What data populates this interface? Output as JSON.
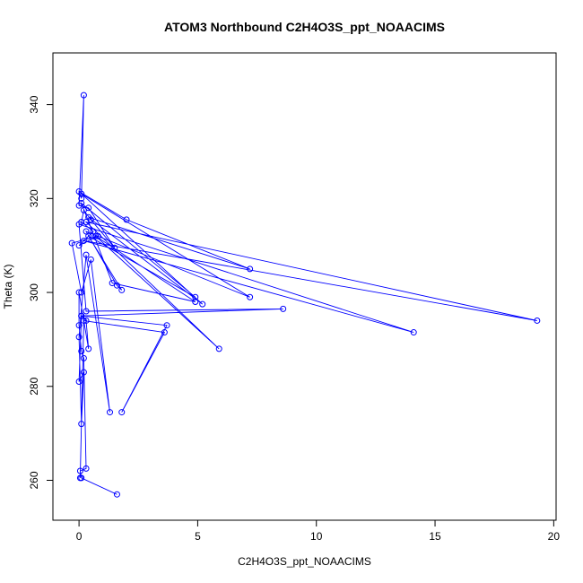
{
  "chart_data": {
    "type": "line",
    "title": "ATOM3 Northbound C2H4O3S_ppt_NOAACIMS",
    "xlabel": "C2H4O3S_ppt_NOAACIMS",
    "ylabel": "Theta (K)",
    "xlim": [
      -1.1,
      20.1
    ],
    "ylim": [
      251.5,
      351
    ],
    "x_ticks": [
      0,
      5,
      10,
      15,
      20
    ],
    "y_ticks": [
      260,
      280,
      300,
      320,
      340
    ],
    "x_tick_labels": [
      "0",
      "5",
      "10",
      "15",
      "20"
    ],
    "y_tick_labels": [
      "260",
      "280",
      "300",
      "320",
      "340"
    ],
    "grid": false,
    "line_color": "#0000ff",
    "marker": "open-circle",
    "series": [
      {
        "x": [
          1.6,
          0.1,
          0.05,
          0.3,
          0.2,
          0.1,
          0.0,
          0.0,
          0.4,
          0.3,
          0.1,
          0.0,
          0.2,
          0.1,
          0.0,
          0.3,
          1.3,
          0.5,
          0.1,
          -0.3,
          0.8,
          0.0,
          0.6,
          0.1,
          0.2,
          0.5,
          1.5,
          0.4,
          0.0,
          0.2,
          0.1,
          0.0,
          2.0,
          7.2,
          0.4,
          5.2,
          0.1,
          7.2,
          0.3,
          1.6,
          1.8,
          0.4,
          4.9,
          0.1,
          1.4,
          4.9,
          0.7,
          5.9,
          0.3,
          19.3,
          0.2,
          14.1,
          0.0,
          0.3,
          8.6,
          0.1,
          3.7,
          1.8,
          3.6,
          0.2,
          0.05
        ],
        "y": [
          257,
          260.5,
          262,
          262.5,
          286,
          287.5,
          293,
          300,
          288,
          294,
          295,
          281,
          283,
          272,
          290.5,
          308,
          274.5,
          307,
          300,
          310.5,
          312,
          310,
          313,
          315,
          317.5,
          315.5,
          309.5,
          318,
          318.5,
          342,
          320,
          321.5,
          315.5,
          305,
          316,
          297.5,
          321,
          299,
          313,
          301.5,
          300.5,
          312,
          299,
          319,
          302,
          298,
          312,
          288,
          315,
          294,
          311,
          291.5,
          314.5,
          296,
          296.5,
          295,
          293,
          274.5,
          291.5,
          294,
          260.5
        ]
      }
    ]
  }
}
